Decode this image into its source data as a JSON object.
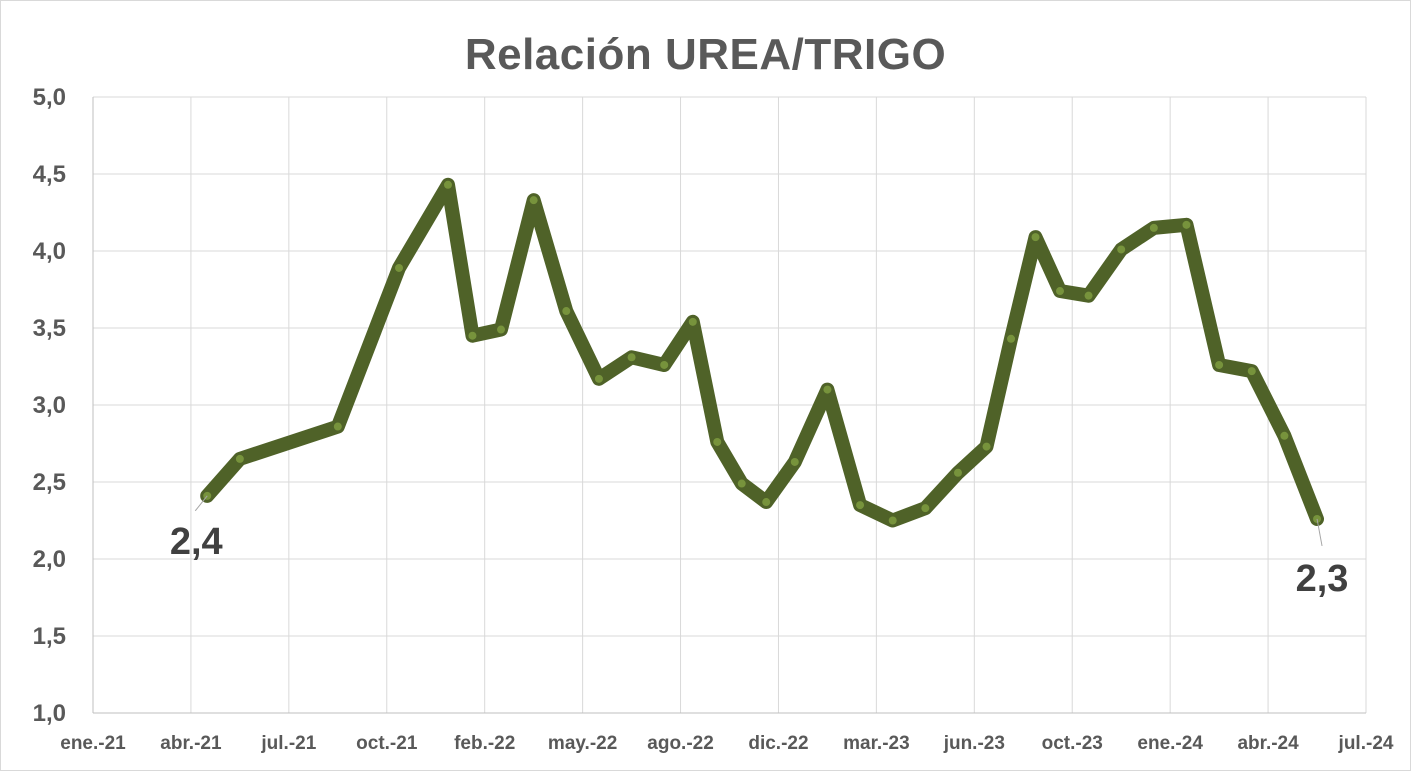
{
  "chart_data": {
    "type": "line",
    "title": "Relación UREA/TRIGO",
    "xlabel": "",
    "ylabel": "",
    "ylim": [
      1.0,
      5.0
    ],
    "grid": true,
    "legend": "none",
    "series_color": "#4f6228",
    "marker_color": "#77933c",
    "y_ticks": [
      "1,0",
      "1,5",
      "2,0",
      "2,5",
      "3,0",
      "3,5",
      "4,0",
      "4,5",
      "5,0"
    ],
    "x_ticks": [
      "ene.-21",
      "abr.-21",
      "jul.-21",
      "oct.-21",
      "feb.-22",
      "may.-22",
      "ago.-22",
      "dic.-22",
      "mar.-23",
      "jun.-23",
      "oct.-23",
      "ene.-24",
      "abr.-24",
      "jul.-24"
    ],
    "series": [
      {
        "points": [
          {
            "x": "2021-04",
            "y": 2.41
          },
          {
            "x": "2021-05",
            "y": 2.65
          },
          {
            "x": "2021-08",
            "y": 2.86
          },
          {
            "x": "2021-10",
            "y": 3.89
          },
          {
            "x": "2021-12",
            "y": 4.43
          },
          {
            "x": "2022-01",
            "y": 3.45
          },
          {
            "x": "2022-02",
            "y": 3.49
          },
          {
            "x": "2022-03",
            "y": 4.33
          },
          {
            "x": "2022-04",
            "y": 3.61
          },
          {
            "x": "2022-05",
            "y": 3.17
          },
          {
            "x": "2022-06",
            "y": 3.31
          },
          {
            "x": "2022-07",
            "y": 3.26
          },
          {
            "x": "2022-08",
            "y": 3.54
          },
          {
            "x": "2022-09",
            "y": 2.76
          },
          {
            "x": "2022-10",
            "y": 2.49
          },
          {
            "x": "2022-11",
            "y": 2.37
          },
          {
            "x": "2022-12",
            "y": 2.63
          },
          {
            "x": "2023-01",
            "y": 3.1
          },
          {
            "x": "2023-02",
            "y": 2.35
          },
          {
            "x": "2023-03",
            "y": 2.25
          },
          {
            "x": "2023-04",
            "y": 2.33
          },
          {
            "x": "2023-05",
            "y": 2.56
          },
          {
            "x": "2023-06",
            "y": 2.73
          },
          {
            "x": "2023-07",
            "y": 3.43
          },
          {
            "x": "2023-08",
            "y": 4.09
          },
          {
            "x": "2023-09",
            "y": 3.74
          },
          {
            "x": "2023-10",
            "y": 3.71
          },
          {
            "x": "2023-11",
            "y": 4.01
          },
          {
            "x": "2023-12",
            "y": 4.15
          },
          {
            "x": "2024-01",
            "y": 4.17
          },
          {
            "x": "2024-02",
            "y": 3.26
          },
          {
            "x": "2024-03",
            "y": 3.22
          },
          {
            "x": "2024-04",
            "y": 2.8
          },
          {
            "x": "2024-05",
            "y": 2.26
          }
        ]
      }
    ],
    "data_labels": [
      {
        "point_index": 0,
        "text": "2,4"
      },
      {
        "point_index": 33,
        "text": "2,3"
      }
    ]
  }
}
